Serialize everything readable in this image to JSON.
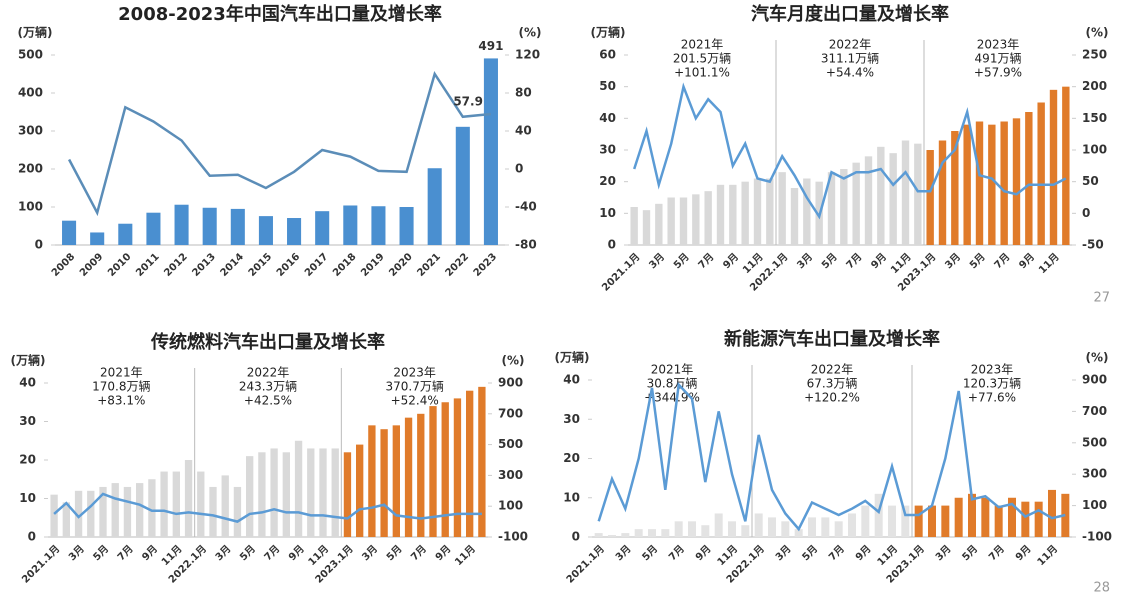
{
  "chart_data": [
    {
      "type": "combo",
      "title": "2008-2023年中国汽车出口量及增长率",
      "ylabel": "(万辆)",
      "y2label": "(%)",
      "categories": [
        "2008",
        "2009",
        "2010",
        "2011",
        "2012",
        "2013",
        "2014",
        "2015",
        "2016",
        "2017",
        "2018",
        "2019",
        "2020",
        "2021",
        "2022",
        "2023"
      ],
      "series": [
        {
          "type": "bar",
          "color": "#4a8fd0",
          "values": [
            64,
            33,
            56,
            85,
            106,
            98,
            95,
            76,
            71,
            89,
            104,
            102,
            100,
            202,
            311,
            491
          ],
          "value_labels": [
            null,
            null,
            null,
            null,
            null,
            null,
            null,
            null,
            null,
            null,
            null,
            null,
            null,
            null,
            null,
            "491"
          ]
        },
        {
          "type": "line",
          "axis": "y2",
          "color": "#5b8db8",
          "values": [
            10,
            -46,
            65,
            50,
            30,
            -7,
            -6,
            -20,
            -3,
            20,
            13,
            -2,
            -3,
            100,
            55,
            57.9
          ],
          "value_labels": [
            null,
            null,
            null,
            null,
            null,
            null,
            null,
            null,
            null,
            null,
            null,
            null,
            null,
            null,
            null,
            "57.9"
          ]
        }
      ],
      "ylim": [
        0,
        500
      ],
      "yticks": [
        0,
        100,
        200,
        300,
        400,
        500
      ],
      "y2lim": [
        -80,
        120
      ],
      "y2ticks": [
        -80,
        -40,
        0,
        40,
        80,
        120
      ]
    },
    {
      "type": "combo",
      "title": "汽车月度出口量及增长率",
      "ylabel": "(万辆)",
      "y2label": "(%)",
      "categories": [
        "2021.1月",
        null,
        "3月",
        null,
        "5月",
        null,
        "7月",
        null,
        "9月",
        null,
        "11月",
        null,
        "2022.1月",
        null,
        "3月",
        null,
        "5月",
        null,
        "7月",
        null,
        "9月",
        null,
        "11月",
        null,
        "2023.1月",
        null,
        "3月",
        null,
        "5月",
        null,
        "7月",
        null,
        "9月",
        null,
        "11月",
        null
      ],
      "series": [
        {
          "type": "bar",
          "colors": [
            "#d9d9d9",
            "#d9d9d9",
            "#d9d9d9",
            "#d9d9d9",
            "#d9d9d9",
            "#d9d9d9",
            "#d9d9d9",
            "#d9d9d9",
            "#d9d9d9",
            "#d9d9d9",
            "#d9d9d9",
            "#d9d9d9",
            "#d9d9d9",
            "#d9d9d9",
            "#d9d9d9",
            "#d9d9d9",
            "#d9d9d9",
            "#d9d9d9",
            "#d9d9d9",
            "#d9d9d9",
            "#d9d9d9",
            "#d9d9d9",
            "#d9d9d9",
            "#d9d9d9",
            "#e07b2a",
            "#e07b2a",
            "#e07b2a",
            "#e07b2a",
            "#e07b2a",
            "#e07b2a",
            "#e07b2a",
            "#e07b2a",
            "#e07b2a",
            "#e07b2a",
            "#e07b2a",
            "#e07b2a"
          ],
          "values": [
            12,
            11,
            13,
            15,
            15,
            16,
            17,
            19,
            19,
            20,
            21,
            21,
            23,
            18,
            21,
            20,
            23,
            24,
            26,
            28,
            31,
            29,
            33,
            32,
            30,
            33,
            36,
            38,
            39,
            38,
            39,
            40,
            42,
            45,
            49,
            50
          ]
        },
        {
          "type": "line",
          "axis": "y2",
          "color": "#5b9bd5",
          "values": [
            70,
            130,
            45,
            110,
            200,
            150,
            180,
            160,
            75,
            110,
            55,
            50,
            90,
            60,
            25,
            -5,
            65,
            55,
            65,
            65,
            70,
            45,
            65,
            35,
            35,
            80,
            100,
            160,
            60,
            55,
            35,
            30,
            45,
            45,
            45,
            55
          ]
        }
      ],
      "ylim": [
        0,
        60
      ],
      "yticks": [
        0,
        10,
        20,
        30,
        40,
        50,
        60
      ],
      "y2lim": [
        -50,
        250
      ],
      "y2ticks": [
        -50,
        0,
        50,
        100,
        150,
        200,
        250
      ],
      "annotations": [
        [
          "2021年",
          "201.5万辆",
          "+101.1%"
        ],
        [
          "2022年",
          "311.1万辆",
          "+54.4%"
        ],
        [
          "2023年",
          "491万辆",
          "+57.9%"
        ]
      ]
    },
    {
      "type": "combo",
      "title": "传统燃料汽车出口量及增长率",
      "ylabel": "(万辆)",
      "y2label": "(%)",
      "categories": [
        "2021.1月",
        null,
        "3月",
        null,
        "5月",
        null,
        "7月",
        null,
        "9月",
        null,
        "11月",
        null,
        "2022.1月",
        null,
        "3月",
        null,
        "5月",
        null,
        "7月",
        null,
        "9月",
        null,
        "11月",
        null,
        "2023.1月",
        null,
        "3月",
        null,
        "5月",
        null,
        "7月",
        null,
        "9月",
        null,
        "11月",
        null
      ],
      "series": [
        {
          "type": "bar",
          "colors": [
            "#d9d9d9",
            "#d9d9d9",
            "#d9d9d9",
            "#d9d9d9",
            "#d9d9d9",
            "#d9d9d9",
            "#d9d9d9",
            "#d9d9d9",
            "#d9d9d9",
            "#d9d9d9",
            "#d9d9d9",
            "#d9d9d9",
            "#d9d9d9",
            "#d9d9d9",
            "#d9d9d9",
            "#d9d9d9",
            "#d9d9d9",
            "#d9d9d9",
            "#d9d9d9",
            "#d9d9d9",
            "#d9d9d9",
            "#d9d9d9",
            "#d9d9d9",
            "#d9d9d9",
            "#e07b2a",
            "#e07b2a",
            "#e07b2a",
            "#e07b2a",
            "#e07b2a",
            "#e07b2a",
            "#e07b2a",
            "#e07b2a",
            "#e07b2a",
            "#e07b2a",
            "#e07b2a",
            "#e07b2a"
          ],
          "values": [
            11,
            9,
            12,
            12,
            13,
            14,
            13,
            14,
            15,
            17,
            17,
            20,
            17,
            13,
            16,
            13,
            21,
            22,
            23,
            22,
            25,
            23,
            23,
            23,
            22,
            24,
            29,
            28,
            29,
            31,
            32,
            34,
            35,
            36,
            38,
            39
          ]
        },
        {
          "type": "line",
          "axis": "y2",
          "color": "#5b9bd5",
          "values": [
            50,
            120,
            30,
            100,
            180,
            150,
            130,
            110,
            70,
            70,
            50,
            60,
            50,
            40,
            20,
            0,
            50,
            60,
            80,
            60,
            60,
            40,
            40,
            30,
            20,
            80,
            90,
            110,
            40,
            30,
            20,
            30,
            40,
            50,
            50,
            50
          ]
        }
      ],
      "ylim": [
        0,
        40
      ],
      "yticks": [
        0,
        10,
        20,
        30,
        40
      ],
      "y2lim": [
        -100,
        900
      ],
      "y2ticks": [
        -100,
        100,
        300,
        500,
        700,
        900
      ],
      "annotations": [
        [
          "2021年",
          "170.8万辆",
          "+83.1%"
        ],
        [
          "2022年",
          "243.3万辆",
          "+42.5%"
        ],
        [
          "2023年",
          "370.7万辆",
          "+52.4%"
        ]
      ]
    },
    {
      "type": "combo",
      "title": "新能源汽车出口量及增长率",
      "ylabel": "(万辆)",
      "y2label": "(%)",
      "categories": [
        "2021.1月",
        null,
        "3月",
        null,
        "5月",
        null,
        "7月",
        null,
        "9月",
        null,
        "11月",
        null,
        "2022.1月",
        null,
        "3月",
        null,
        "5月",
        null,
        "7月",
        null,
        "9月",
        null,
        "11月",
        null,
        "2023.1月",
        null,
        "3月",
        null,
        "5月",
        null,
        "7月",
        null,
        "9月",
        null,
        "11月",
        null
      ],
      "series": [
        {
          "type": "bar",
          "colors": [
            "#e3e3e3",
            "#e3e3e3",
            "#e3e3e3",
            "#e3e3e3",
            "#e3e3e3",
            "#e3e3e3",
            "#e3e3e3",
            "#e3e3e3",
            "#e3e3e3",
            "#e3e3e3",
            "#e3e3e3",
            "#e3e3e3",
            "#e3e3e3",
            "#e3e3e3",
            "#e3e3e3",
            "#e3e3e3",
            "#e3e3e3",
            "#e3e3e3",
            "#e3e3e3",
            "#e3e3e3",
            "#e3e3e3",
            "#e3e3e3",
            "#e3e3e3",
            "#e3e3e3",
            "#e07b2a",
            "#e07b2a",
            "#e07b2a",
            "#e07b2a",
            "#e07b2a",
            "#e07b2a",
            "#e07b2a",
            "#e07b2a",
            "#e07b2a",
            "#e07b2a",
            "#e07b2a",
            "#e07b2a"
          ],
          "values": [
            1,
            0.5,
            1,
            2,
            2,
            2,
            4,
            4,
            3,
            6,
            4,
            3,
            6,
            5,
            4,
            2,
            5,
            5,
            4,
            6,
            8,
            11,
            8,
            8,
            8,
            8,
            8,
            10,
            11,
            10,
            8,
            10,
            9,
            9,
            12,
            11
          ]
        },
        {
          "type": "line",
          "axis": "y2",
          "color": "#5b9bd5",
          "values": [
            0,
            270,
            80,
            400,
            850,
            200,
            870,
            780,
            250,
            700,
            300,
            0,
            550,
            200,
            50,
            -50,
            120,
            80,
            40,
            80,
            130,
            60,
            350,
            40,
            40,
            100,
            400,
            830,
            140,
            160,
            90,
            110,
            30,
            70,
            20,
            40
          ]
        }
      ],
      "ylim": [
        0,
        40
      ],
      "yticks": [
        0,
        10,
        20,
        30,
        40
      ],
      "y2lim": [
        -100,
        900
      ],
      "y2ticks": [
        -100,
        100,
        300,
        500,
        700,
        900
      ],
      "annotations": [
        [
          "2021年",
          "30.8万辆",
          "+344.9%"
        ],
        [
          "2022年",
          "67.3万辆",
          "+120.2%"
        ],
        [
          "2023年",
          "120.3万辆",
          "+77.6%"
        ]
      ]
    }
  ],
  "page_numbers": [
    "27",
    "28"
  ]
}
